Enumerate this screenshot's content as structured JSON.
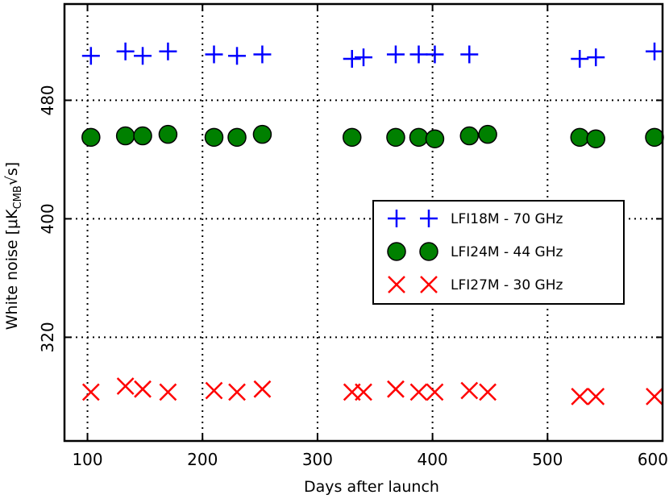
{
  "chart_data": {
    "type": "scatter",
    "xlabel": "Days after launch",
    "ylabel_main": "White noise  [μK",
    "ylabel_sub": "CMB",
    "ylabel_sqrt": "√s",
    "ylabel_close": "]",
    "xlim": [
      80,
      600
    ],
    "ylim": [
      250,
      545
    ],
    "xticks": [
      100,
      200,
      300,
      400,
      500,
      600
    ],
    "yticks": [
      320,
      400,
      480
    ],
    "grid": true,
    "legend_position": "center-right",
    "series": [
      {
        "name": "LFI18M - 70 GHz",
        "marker": "plus",
        "color": "#0000ff",
        "x": [
          103,
          133,
          148,
          170,
          210,
          230,
          252,
          330,
          340,
          368,
          388,
          402,
          432,
          528,
          542,
          593
        ],
        "y": [
          510,
          513,
          510,
          513,
          511,
          510,
          511,
          508,
          509,
          511,
          511,
          511,
          511,
          508,
          509,
          513
        ]
      },
      {
        "name": "LFI24M - 44 GHz",
        "marker": "circle",
        "color": "#008000",
        "x": [
          103,
          133,
          148,
          170,
          210,
          230,
          252,
          330,
          368,
          388,
          402,
          432,
          448,
          528,
          542,
          593
        ],
        "y": [
          455,
          456,
          456,
          457,
          455,
          455,
          457,
          455,
          455,
          455,
          454,
          456,
          457,
          455,
          454,
          455
        ]
      },
      {
        "name": "LFI27M - 30 GHz",
        "marker": "x",
        "color": "#ff0000",
        "x": [
          103,
          133,
          148,
          170,
          210,
          230,
          252,
          330,
          340,
          368,
          388,
          402,
          432,
          448,
          528,
          542,
          593
        ],
        "y": [
          283,
          287,
          285,
          283,
          284,
          283,
          285,
          283,
          283,
          285,
          283,
          283,
          284,
          283,
          280,
          280,
          280
        ]
      }
    ]
  }
}
